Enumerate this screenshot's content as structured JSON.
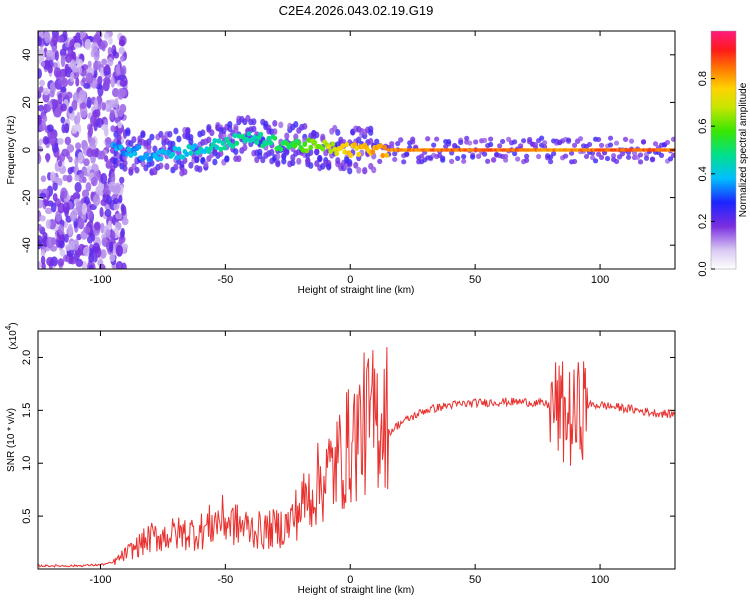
{
  "title": "C2E4.2026.043.02.19.G19",
  "chart_data": [
    {
      "type": "heatmap",
      "xlabel": "Height of straight line (km)",
      "ylabel": "Frequency (Hz)",
      "xlim": [
        -125,
        130
      ],
      "ylim": [
        -50,
        50
      ],
      "xticks": [
        -100,
        -50,
        0,
        50,
        100
      ],
      "yticks": [
        -40,
        -20,
        0,
        20,
        40
      ],
      "xtick_labels": [
        "-100",
        "-50",
        "0",
        "50",
        "100"
      ],
      "ytick_labels": [
        "-40",
        "-20",
        "0",
        "20",
        "40"
      ],
      "colorbar": {
        "label": "Normalized spectral amplitude",
        "range": [
          0,
          1
        ],
        "ticks": [
          0.0,
          0.2,
          0.4,
          0.6,
          0.8
        ],
        "tick_labels": [
          "0.0",
          "0.2",
          "0.4",
          "0.6",
          "0.8"
        ]
      },
      "ridge": {
        "x": [
          -90,
          -80,
          -70,
          -60,
          -50,
          -40,
          -30,
          -20,
          -10,
          0,
          15,
          30,
          60,
          85,
          100,
          130
        ],
        "y": [
          0,
          -2,
          -1,
          0,
          3,
          5,
          3,
          2,
          1,
          0,
          0,
          0,
          0,
          0,
          0,
          0
        ],
        "amplitude": [
          0.4,
          0.4,
          0.45,
          0.45,
          0.5,
          0.5,
          0.55,
          0.6,
          0.7,
          0.8,
          0.85,
          0.88,
          0.9,
          0.85,
          0.9,
          0.9
        ]
      }
    },
    {
      "type": "line",
      "xlabel": "Height of straight line (km)",
      "ylabel": "SNR (10 * v/v)",
      "y_scale_label": "(x10",
      "y_scale_exp": "4",
      "xlim": [
        -125,
        130
      ],
      "ylim": [
        0,
        2.25
      ],
      "xticks": [
        -100,
        -50,
        0,
        50,
        100
      ],
      "yticks": [
        0.5,
        1.0,
        1.5,
        2.0
      ],
      "xtick_labels": [
        "-100",
        "-50",
        "0",
        "50",
        "100"
      ],
      "ytick_labels": [
        "0.5",
        "1.0",
        "1.5",
        "2.0"
      ],
      "color": "#e8322f",
      "series": [
        {
          "name": "SNR",
          "x": [
            -125,
            -110,
            -100,
            -95,
            -90,
            -80,
            -70,
            -60,
            -52,
            -45,
            -35,
            -25,
            -18,
            -12,
            -5,
            0,
            5,
            10,
            15,
            20,
            30,
            40,
            50,
            60,
            70,
            78,
            82,
            86,
            90,
            92,
            95,
            100,
            110,
            120,
            130
          ],
          "y": [
            0.02,
            0.02,
            0.03,
            0.05,
            0.12,
            0.25,
            0.28,
            0.3,
            0.4,
            0.35,
            0.3,
            0.35,
            0.55,
            0.7,
            0.85,
            1.0,
            1.15,
            1.2,
            1.28,
            1.38,
            1.5,
            1.55,
            1.57,
            1.58,
            1.58,
            1.56,
            1.52,
            1.45,
            1.4,
            1.52,
            1.55,
            1.55,
            1.52,
            1.48,
            1.46
          ]
        }
      ]
    }
  ]
}
